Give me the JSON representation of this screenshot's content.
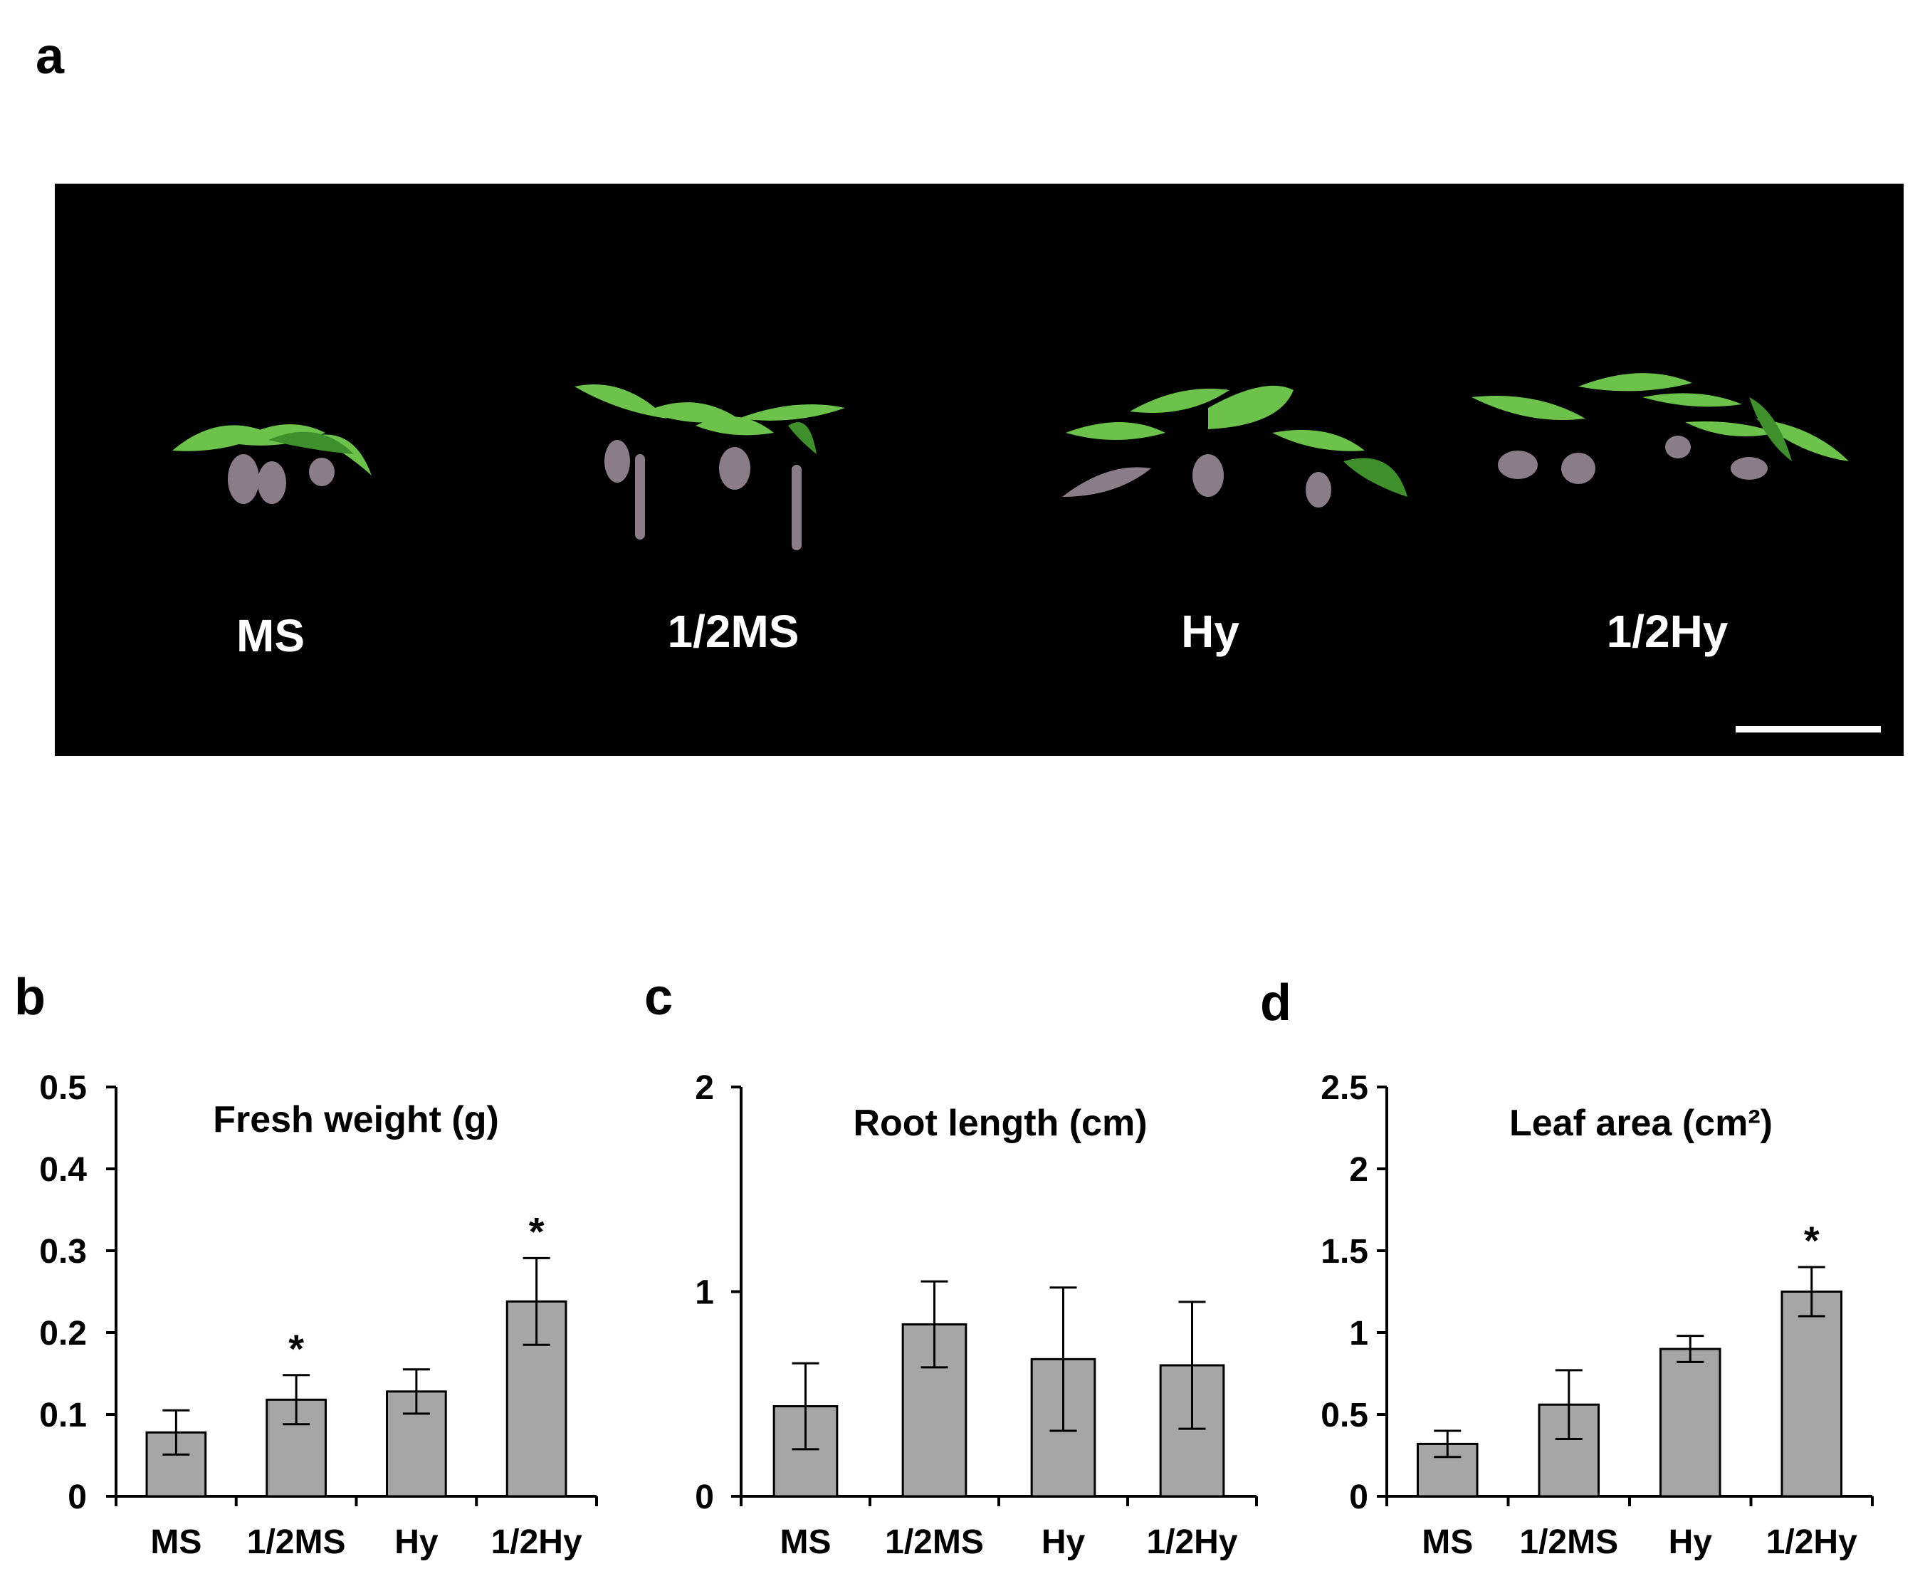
{
  "panel_labels": {
    "a": "a",
    "b": "b",
    "c": "c",
    "d": "d"
  },
  "photo": {
    "labels": [
      "MS",
      "1/2MS",
      "Hy",
      "1/2Hy"
    ],
    "colors": {
      "background": "#000000",
      "leaf": "#6cc24a",
      "leaf_dark": "#3f8f2c",
      "root": "#8a7d88",
      "label": "#ffffff"
    }
  },
  "bar_color": "#a6a6a6",
  "chart_data": [
    {
      "type": "bar",
      "title": "Fresh weight (g)",
      "categories": [
        "MS",
        "1/2MS",
        "Hy",
        "1/2Hy"
      ],
      "values": [
        0.078,
        0.118,
        0.128,
        0.238
      ],
      "errors": [
        0.027,
        0.03,
        0.027,
        0.053
      ],
      "significance": [
        "",
        "*",
        "",
        "*"
      ],
      "yticks": [
        "0",
        "0.1",
        "0.2",
        "0.3",
        "0.4",
        "0.5"
      ],
      "ylim": [
        0,
        0.5
      ],
      "grid": false,
      "legend": "none"
    },
    {
      "type": "bar",
      "title": "Root length (cm)",
      "categories": [
        "MS",
        "1/2MS",
        "Hy",
        "1/2Hy"
      ],
      "values": [
        0.44,
        0.84,
        0.67,
        0.64
      ],
      "errors": [
        0.21,
        0.21,
        0.35,
        0.31
      ],
      "significance": [
        "",
        "",
        "",
        ""
      ],
      "yticks": [
        "0",
        "1",
        "2"
      ],
      "ylim": [
        0,
        2
      ],
      "grid": false,
      "legend": "none"
    },
    {
      "type": "bar",
      "title": "Leaf area (cm²)",
      "categories": [
        "MS",
        "1/2MS",
        "Hy",
        "1/2Hy"
      ],
      "values": [
        0.32,
        0.56,
        0.9,
        1.25
      ],
      "errors": [
        0.08,
        0.21,
        0.08,
        0.15
      ],
      "significance": [
        "",
        "",
        "",
        "*"
      ],
      "yticks": [
        "0",
        "0.5",
        "1",
        "1.5",
        "2",
        "2.5"
      ],
      "ylim": [
        0,
        2.5
      ],
      "grid": false,
      "legend": "none"
    }
  ]
}
